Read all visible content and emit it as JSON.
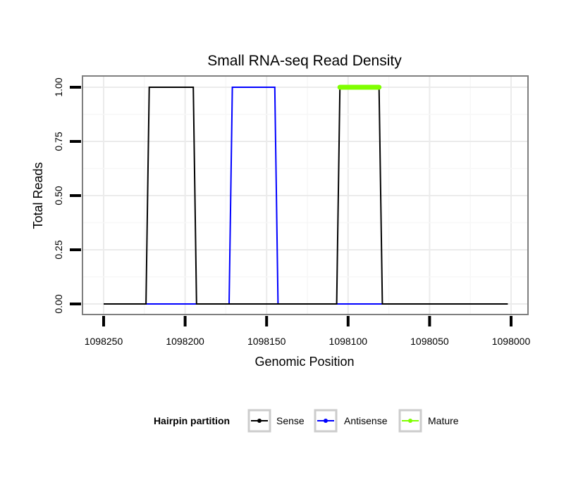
{
  "chart_data": {
    "type": "line",
    "title": "Small RNA-seq Read Density",
    "xlabel": "Genomic Position",
    "ylabel": "Total Reads",
    "x_reversed": true,
    "xlim": [
      1098250,
      1098000
    ],
    "ylim": [
      0,
      1
    ],
    "x_ticks": [
      1098250,
      1098200,
      1098150,
      1098100,
      1098050,
      1098000
    ],
    "x_tick_labels": [
      "1098250",
      "1098200",
      "1098150",
      "1098100",
      "1098050",
      "1098000"
    ],
    "y_ticks": [
      0,
      0.25,
      0.5,
      0.75,
      1
    ],
    "y_tick_labels": [
      "0.00",
      "0.25",
      "0.50",
      "0.75",
      "1.00"
    ],
    "grid": true,
    "legend": {
      "position": "bottom",
      "title": "Hairpin partition",
      "entries": [
        "Sense",
        "Antisense",
        "Mature"
      ]
    },
    "series": [
      {
        "name": "Sense",
        "color": "#000000",
        "x": [
          1098250,
          1098224,
          1098222,
          1098195,
          1098193,
          1098107,
          1098105,
          1098081,
          1098079,
          1098002
        ],
        "y": [
          0,
          0,
          1,
          1,
          0,
          0,
          1,
          1,
          0,
          0
        ]
      },
      {
        "name": "Antisense",
        "color": "#0000ff",
        "x": [
          1098224,
          1098193,
          1098173,
          1098171,
          1098145,
          1098143,
          1098107,
          1098079
        ],
        "y": [
          0,
          0,
          0,
          1,
          1,
          0,
          0,
          0
        ]
      },
      {
        "name": "Mature",
        "color": "#7fff00",
        "x": [
          1098105,
          1098081
        ],
        "y": [
          1,
          1
        ]
      }
    ]
  }
}
